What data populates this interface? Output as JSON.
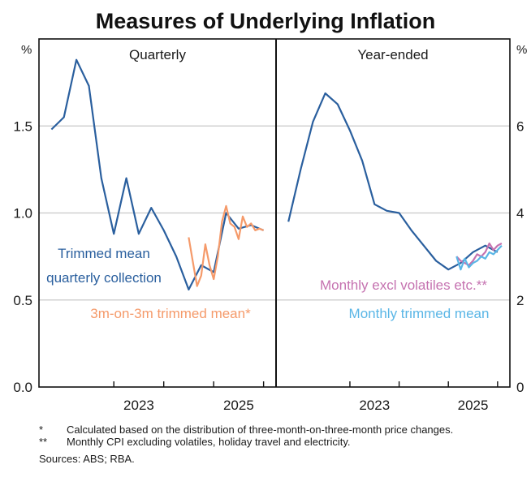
{
  "chart_data": {
    "type": "line",
    "title": "Measures of Underlying Inflation",
    "footnotes": [
      {
        "mark": "*",
        "text": "Calculated based on the distribution of three-month-on-three-month price changes."
      },
      {
        "mark": "**",
        "text": "Monthly CPI excluding volatiles, holiday travel and electricity."
      }
    ],
    "sources": "Sources: ABS; RBA.",
    "colors": {
      "quarterly": "#2a5f9e",
      "three_m": "#f59a6a",
      "excl_volatiles": "#c572b0",
      "monthly_trimmed": "#5ab6e6"
    },
    "panels": [
      {
        "title": "Quarterly",
        "y_unit": "%",
        "ylim": [
          0,
          2
        ],
        "yticks": [
          "0.0",
          "0.5",
          "1.0",
          "1.5"
        ],
        "xticks": [
          "2023",
          "2025"
        ],
        "xlim": [
          2021.0,
          2025.75
        ],
        "series": [
          {
            "name": "Trimmed mean quarterly collection",
            "label_lines": [
              "Trimmed mean",
              "quarterly collection"
            ],
            "color": "#2a5f9e",
            "x": [
              2021.25,
              2021.5,
              2021.75,
              2022.0,
              2022.25,
              2022.5,
              2022.75,
              2023.0,
              2023.25,
              2023.5,
              2023.75,
              2024.0,
              2024.25,
              2024.5,
              2024.75,
              2025.0,
              2025.25,
              2025.5
            ],
            "y": [
              1.48,
              1.55,
              1.88,
              1.73,
              1.2,
              0.88,
              1.2,
              0.88,
              1.03,
              0.9,
              0.75,
              0.56,
              0.7,
              0.66,
              1.0,
              0.91,
              0.93,
              0.9
            ]
          },
          {
            "name": "3m-on-3m trimmed mean*",
            "label_lines": [
              "3m-on-3m trimmed mean*"
            ],
            "color": "#f59a6a",
            "x": [
              2024.0,
              2024.083,
              2024.167,
              2024.25,
              2024.333,
              2024.417,
              2024.5,
              2024.583,
              2024.667,
              2024.75,
              2024.833,
              2024.917,
              2025.0,
              2025.083,
              2025.167,
              2025.25,
              2025.333,
              2025.417,
              2025.5
            ],
            "y": [
              0.86,
              0.72,
              0.58,
              0.64,
              0.82,
              0.7,
              0.62,
              0.75,
              0.95,
              1.04,
              0.94,
              0.92,
              0.85,
              0.98,
              0.92,
              0.94,
              0.9,
              0.91,
              0.9
            ]
          }
        ]
      },
      {
        "title": "Year-ended",
        "y_unit": "%",
        "ylim": [
          0,
          8
        ],
        "yticks": [
          "0",
          "2",
          "4",
          "6"
        ],
        "xticks": [
          "2023",
          "2025"
        ],
        "xlim": [
          2021.0,
          2025.75
        ],
        "series": [
          {
            "name": "Trimmed mean quarterly collection",
            "color": "#2a5f9e",
            "x": [
              2021.25,
              2021.5,
              2021.75,
              2022.0,
              2022.25,
              2022.5,
              2022.75,
              2023.0,
              2023.25,
              2023.5,
              2023.75,
              2024.0,
              2024.25,
              2024.5,
              2024.75,
              2025.0,
              2025.25,
              2025.5
            ],
            "y": [
              3.8,
              5.0,
              6.1,
              6.75,
              6.5,
              5.9,
              5.2,
              4.2,
              4.05,
              4.0,
              3.6,
              3.25,
              2.9,
              2.7,
              2.85,
              3.1,
              3.25,
              3.1
            ]
          },
          {
            "name": "Monthly excl volatiles etc.**",
            "label_lines": [
              "Monthly excl volatiles etc.**"
            ],
            "color": "#c572b0",
            "x": [
              2024.667,
              2024.75,
              2024.833,
              2024.917,
              2025.0,
              2025.083,
              2025.167,
              2025.25,
              2025.333,
              2025.417,
              2025.5,
              2025.583
            ],
            "y": [
              3.0,
              2.9,
              2.85,
              2.8,
              2.9,
              3.05,
              3.0,
              3.1,
              3.3,
              3.15,
              3.25,
              3.3
            ]
          },
          {
            "name": "Monthly trimmed mean",
            "label_lines": [
              "Monthly trimmed mean"
            ],
            "color": "#5ab6e6",
            "x": [
              2024.667,
              2024.75,
              2024.833,
              2024.917,
              2025.0,
              2025.083,
              2025.167,
              2025.25,
              2025.333,
              2025.417,
              2025.5,
              2025.583
            ],
            "y": [
              3.0,
              2.7,
              2.95,
              2.75,
              2.85,
              2.9,
              3.0,
              2.95,
              3.1,
              3.05,
              3.15,
              3.25
            ]
          }
        ]
      }
    ]
  }
}
